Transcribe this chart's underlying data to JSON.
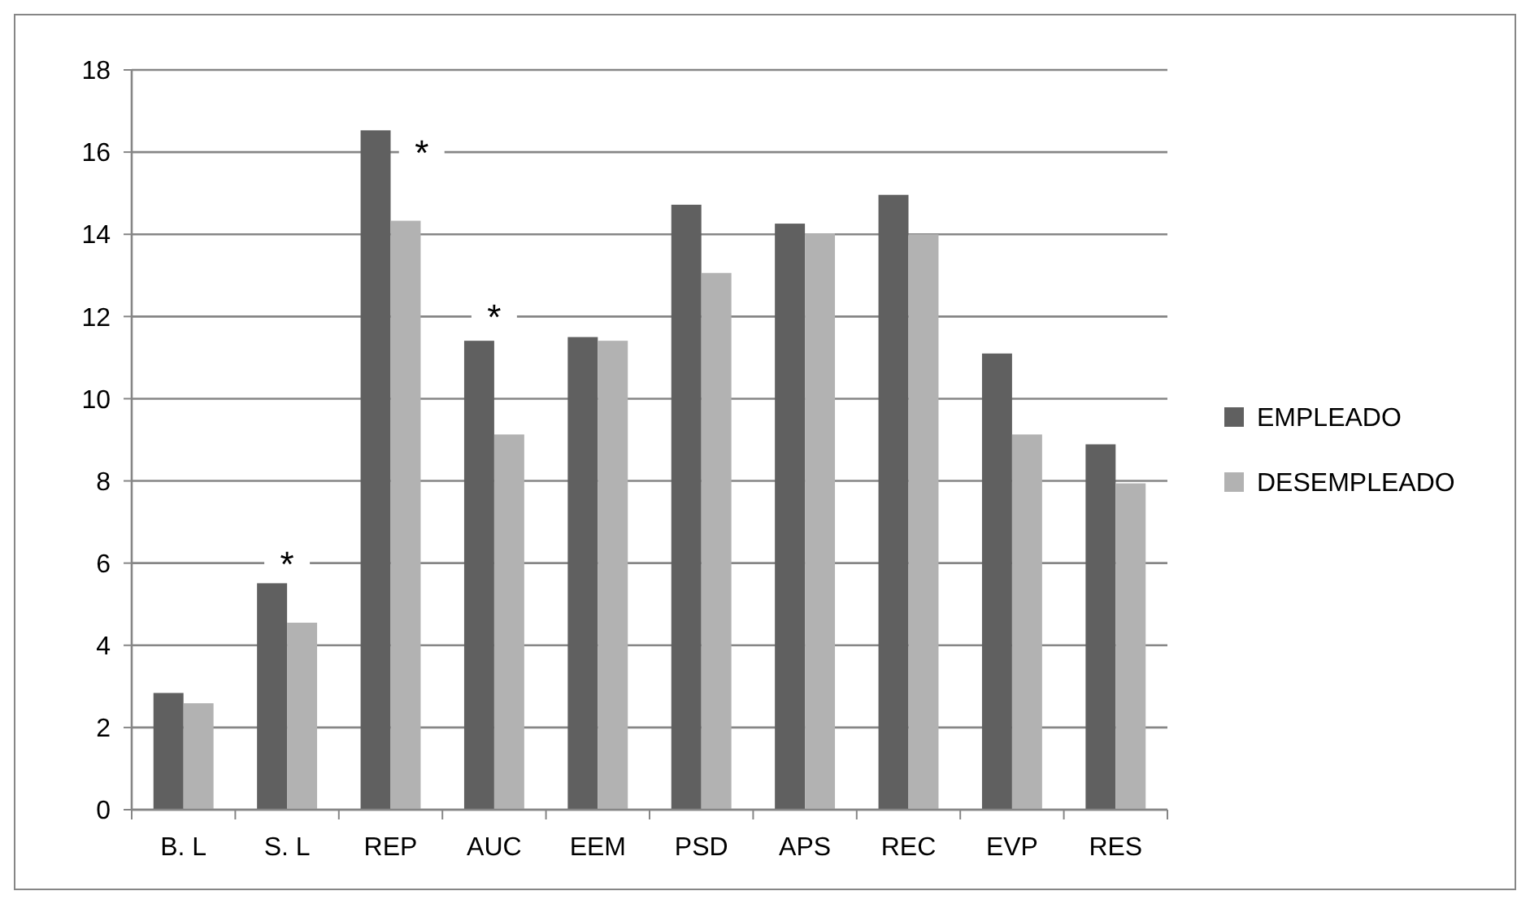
{
  "chart_data": {
    "type": "bar",
    "categories": [
      "B. L",
      "S. L",
      "REP",
      "AUC",
      "EEM",
      "PSD",
      "APS",
      "REC",
      "EVP",
      "RES"
    ],
    "series": [
      {
        "name": "EMPLEADO",
        "color": "#606060",
        "values": [
          2.84,
          5.51,
          16.53,
          11.41,
          11.5,
          14.72,
          14.26,
          14.96,
          11.1,
          8.89
        ]
      },
      {
        "name": "DESEMPLEADO",
        "color": "#b2b2b2",
        "values": [
          2.59,
          4.55,
          14.33,
          9.13,
          11.41,
          13.06,
          14.02,
          14.0,
          9.13,
          7.94
        ]
      }
    ],
    "ylim": [
      0,
      18
    ],
    "yticks": [
      0,
      2,
      4,
      6,
      8,
      10,
      12,
      14,
      16,
      18
    ],
    "grid": "y",
    "legend": "right",
    "annotations": [
      "*",
      "*",
      "*"
    ]
  }
}
